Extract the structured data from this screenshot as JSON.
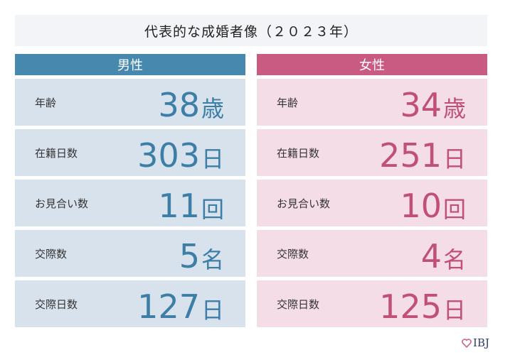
{
  "title": "代表的な成婚者像（２０２３年）",
  "male": {
    "header": "男性",
    "rows": [
      {
        "label": "年齢",
        "value": "38",
        "unit": "歳"
      },
      {
        "label": "在籍日数",
        "value": "303",
        "unit": "日"
      },
      {
        "label": "お見合い数",
        "value": "11",
        "unit": "回"
      },
      {
        "label": "交際数",
        "value": "5",
        "unit": "名"
      },
      {
        "label": "交際日数",
        "value": "127",
        "unit": "日"
      }
    ]
  },
  "female": {
    "header": "女性",
    "rows": [
      {
        "label": "年齢",
        "value": "34",
        "unit": "歳"
      },
      {
        "label": "在籍日数",
        "value": "251",
        "unit": "日"
      },
      {
        "label": "お見合い数",
        "value": "10",
        "unit": "回"
      },
      {
        "label": "交際数",
        "value": "4",
        "unit": "名"
      },
      {
        "label": "交際日数",
        "value": "125",
        "unit": "日"
      }
    ]
  },
  "logo": {
    "text": "IBJ",
    "icon": "heart-icon"
  },
  "colors": {
    "male": "#4789ae",
    "female": "#c95b83"
  }
}
